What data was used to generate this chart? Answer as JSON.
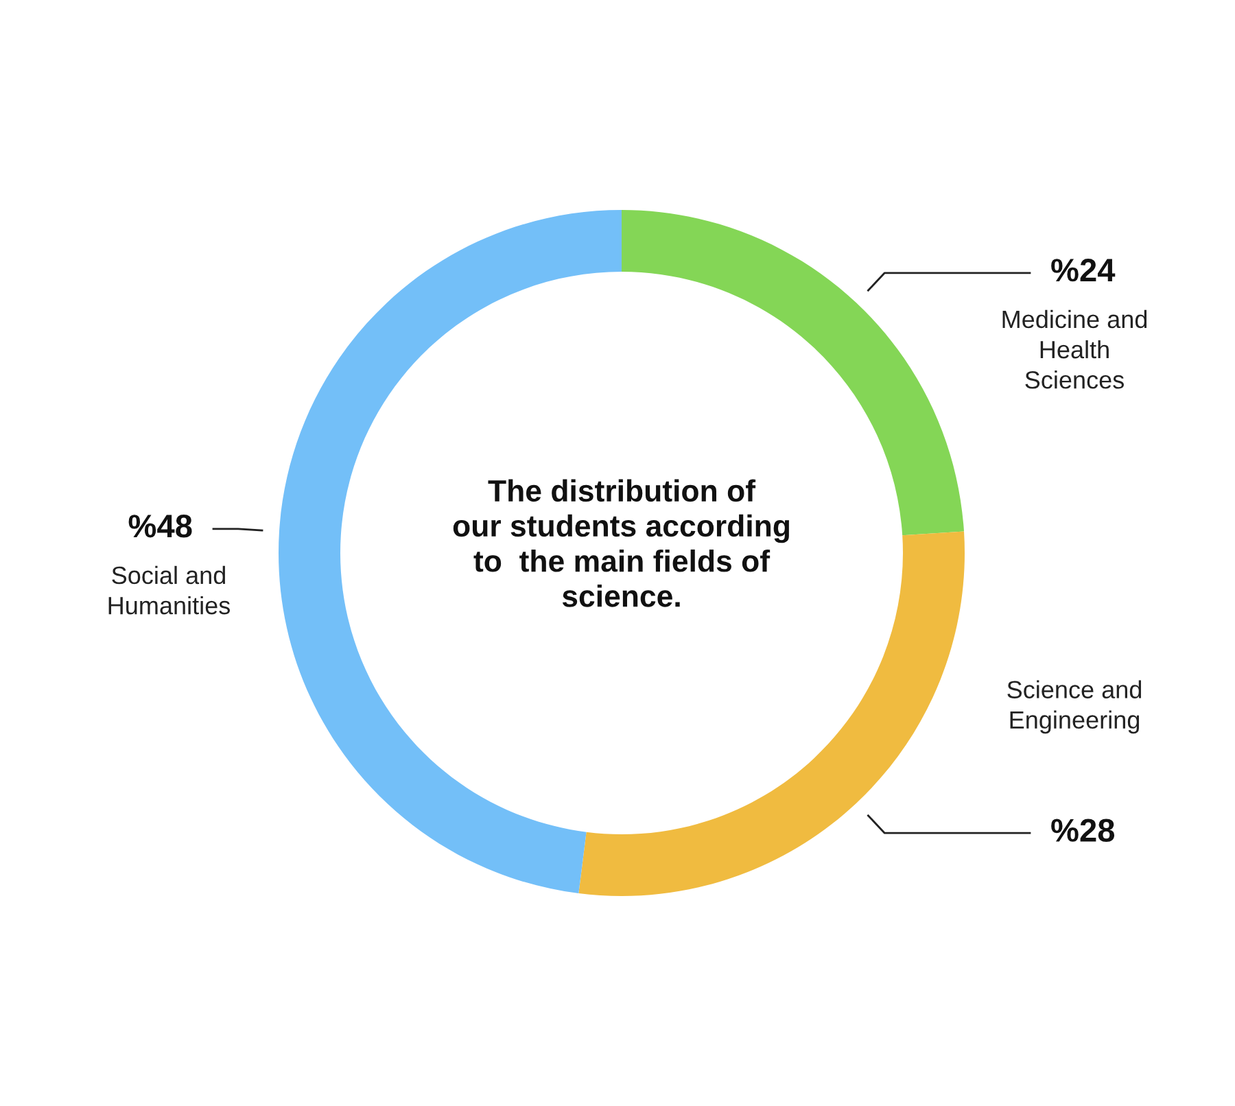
{
  "chart_data": {
    "type": "donut",
    "title": "The distribution of\nour students according\nto  the main fields of\nscience.",
    "categories": [
      "Medicine and\nHealth\nSciences",
      "Science and\nEngineering",
      "Social and\nHumanities"
    ],
    "values": [
      24,
      28,
      48
    ],
    "value_labels": [
      "%24",
      "%28",
      "%48"
    ],
    "colors": [
      "#84d656",
      "#f0bb40",
      "#73bff8"
    ]
  }
}
